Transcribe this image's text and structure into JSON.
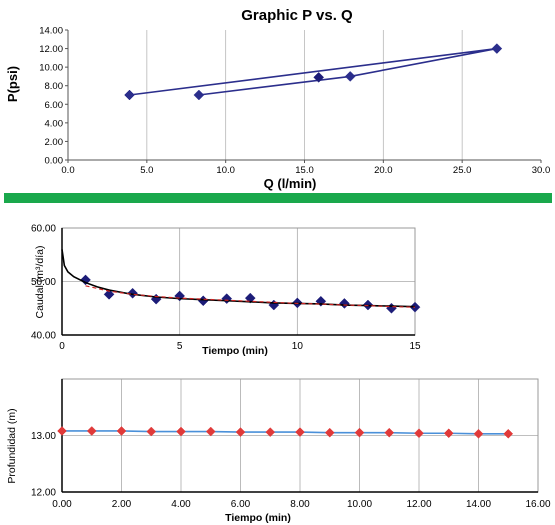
{
  "chart_data": [
    {
      "type": "line",
      "title": "Graphic P vs. Q",
      "xlabel": "Q (l/min)",
      "ylabel": "P(psi)",
      "xlim": [
        0,
        30
      ],
      "ylim": [
        0,
        14
      ],
      "x_ticks": [
        "0.0",
        "5.0",
        "10.0",
        "15.0",
        "20.0",
        "25.0",
        "30.0"
      ],
      "y_ticks": [
        "0.00",
        "2.00",
        "4.00",
        "6.00",
        "8.00",
        "10.00",
        "12.00",
        "14.00"
      ],
      "grid": "vertical",
      "series": [
        {
          "x": [
            3.9,
            27.2,
            17.9,
            8.3
          ],
          "y": [
            7.0,
            12.0,
            9.0,
            7.0
          ],
          "color": "#2b2e8c",
          "marker": "diamond"
        },
        {
          "x": [
            15.9
          ],
          "y": [
            8.9
          ],
          "color": "#1c1c78",
          "marker": "diamond",
          "line": false
        }
      ]
    },
    {
      "type": "scatter",
      "title": "",
      "xlabel": "Tiempo (min)",
      "ylabel": "Caudal (m³/día)",
      "xlim": [
        0,
        15
      ],
      "ylim": [
        40,
        60
      ],
      "x_ticks": [
        "0",
        "5",
        "10",
        "15"
      ],
      "y_ticks": [
        "40.00",
        "50.00",
        "60.00"
      ],
      "grid": "both",
      "series": [
        {
          "x": [
            1,
            2,
            3,
            4,
            5,
            6,
            7,
            8,
            9,
            10,
            11,
            12,
            13,
            14,
            15
          ],
          "y": [
            50.3,
            47.6,
            47.8,
            46.7,
            47.3,
            46.4,
            46.8,
            46.9,
            45.6,
            46.0,
            46.3,
            45.9,
            45.6,
            45.0,
            45.2
          ],
          "color": "#1c1c78",
          "marker": "diamond"
        },
        {
          "x": [
            0,
            0.1,
            0.25,
            0.5,
            1,
            1.5,
            2,
            3,
            4,
            5,
            6,
            7,
            8,
            9,
            10,
            11,
            12,
            13,
            14,
            15
          ],
          "y": [
            56,
            53,
            51.8,
            50.9,
            49.8,
            49.0,
            48.4,
            47.6,
            47.1,
            46.8,
            46.6,
            46.4,
            46.2,
            46.0,
            45.9,
            45.8,
            45.6,
            45.5,
            45.4,
            45.3
          ],
          "color": "#000000",
          "style": "solid",
          "line": true
        },
        {
          "x": [
            1,
            2,
            3,
            4,
            5,
            6,
            7,
            8,
            9,
            10,
            11,
            12,
            13,
            14,
            15
          ],
          "y": [
            49.2,
            48.2,
            47.6,
            47.2,
            46.9,
            46.7,
            46.5,
            46.3,
            46.1,
            45.9,
            45.8,
            45.6,
            45.5,
            45.3,
            45.2
          ],
          "color": "#cc2222",
          "style": "dashed",
          "line": true
        }
      ]
    },
    {
      "type": "line",
      "title": "",
      "xlabel": "Tiempo (min)",
      "ylabel": "Profundidad (m)",
      "xlim": [
        0,
        16
      ],
      "ylim": [
        12,
        14
      ],
      "x_ticks": [
        "0.00",
        "2.00",
        "4.00",
        "6.00",
        "8.00",
        "10.00",
        "12.00",
        "14.00",
        "16.00"
      ],
      "y_ticks": [
        "12.00",
        "13.00"
      ],
      "grid": "both",
      "series": [
        {
          "x": [
            0,
            1,
            2,
            3,
            4,
            5,
            6,
            7,
            8,
            9,
            10,
            11,
            12,
            13,
            14,
            15
          ],
          "y": [
            13.08,
            13.08,
            13.08,
            13.07,
            13.07,
            13.07,
            13.06,
            13.06,
            13.06,
            13.05,
            13.05,
            13.05,
            13.04,
            13.04,
            13.03,
            13.03
          ],
          "color": "#4a90d9",
          "marker": "diamond",
          "marker_color": "#e03a3a"
        }
      ]
    }
  ],
  "page": {
    "separator_color": "#1aa84c"
  }
}
